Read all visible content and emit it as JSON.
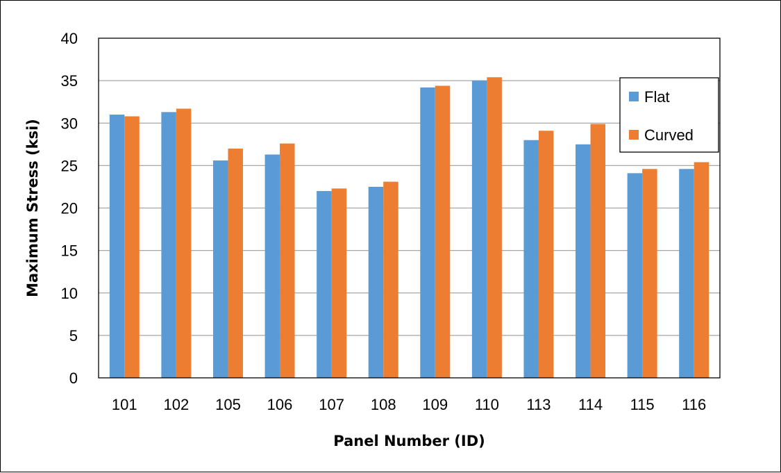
{
  "chart_data": {
    "type": "bar",
    "xlabel": "Panel Number (ID)",
    "ylabel": "Maximum Stress (ksi)",
    "ylim": [
      0,
      40
    ],
    "yticks": [
      0,
      5,
      10,
      15,
      20,
      25,
      30,
      35,
      40
    ],
    "grid": true,
    "legend_position": "right",
    "categories": [
      "101",
      "102",
      "105",
      "106",
      "107",
      "108",
      "109",
      "110",
      "113",
      "114",
      "115",
      "116"
    ],
    "series": [
      {
        "name": "Flat",
        "color": "#5B9BD5",
        "values": [
          31.0,
          31.3,
          25.6,
          26.3,
          22.0,
          22.5,
          34.2,
          35.0,
          28.0,
          27.5,
          24.1,
          24.6
        ]
      },
      {
        "name": "Curved",
        "color": "#ED7D31",
        "values": [
          30.8,
          31.7,
          27.0,
          27.6,
          22.3,
          23.1,
          34.4,
          35.4,
          29.1,
          29.9,
          24.6,
          25.4
        ]
      }
    ]
  }
}
